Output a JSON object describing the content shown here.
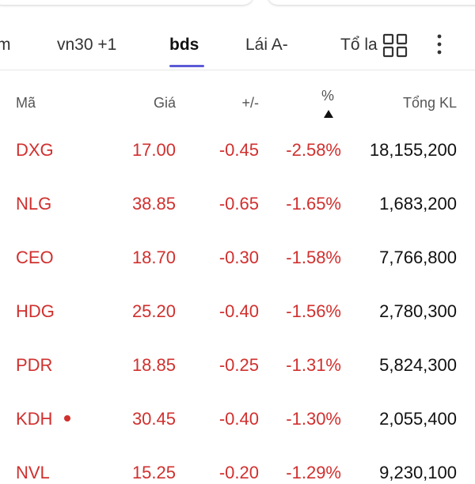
{
  "tabs": [
    "m",
    "vn30 +1",
    "bds",
    "Lái A-",
    "Tổ la"
  ],
  "active_tab": "bds",
  "table": {
    "headers": [
      "Mã",
      "Giá",
      "+/-",
      "%",
      "Tổng KL"
    ],
    "rows": [
      [
        "DXG",
        "17.00",
        "-0.45",
        "-2.58%",
        "18,155,200"
      ],
      [
        "NLG",
        "38.85",
        "-0.65",
        "-1.65%",
        "1,683,200"
      ],
      [
        "CEO",
        "18.70",
        "-0.30",
        "-1.58%",
        "7,766,800"
      ],
      [
        "HDG",
        "25.20",
        "-0.40",
        "-1.56%",
        "2,780,300"
      ],
      [
        "PDR",
        "18.85",
        "-0.25",
        "-1.31%",
        "5,824,300"
      ],
      [
        "KDH",
        "30.45",
        "-0.40",
        "-1.30%",
        "2,055,400"
      ],
      [
        "NVL",
        "15.25",
        "-0.20",
        "-1.29%",
        "9,230,100"
      ]
    ]
  }
}
